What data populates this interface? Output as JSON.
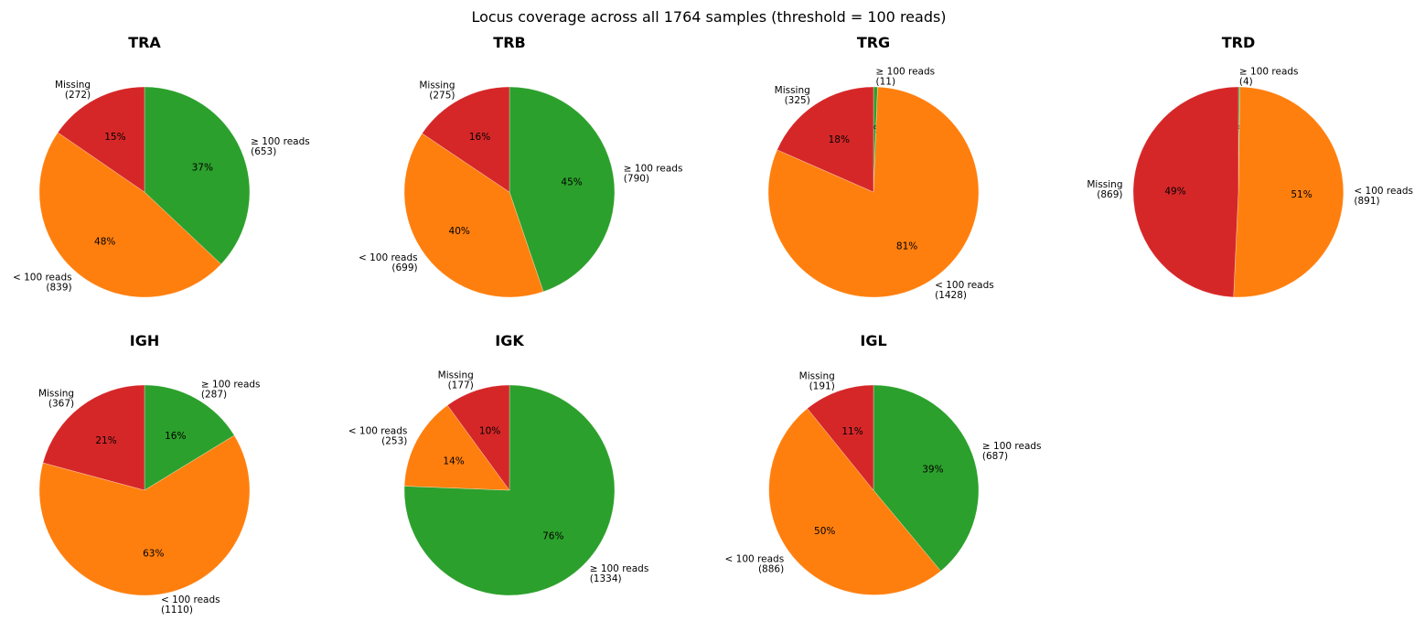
{
  "suptitle": "Locus coverage across all 1764 samples (threshold = 100 reads)",
  "colors": {
    "ge": "#2ca02c",
    "lt": "#ff7f0e",
    "missing": "#d62728"
  },
  "chart_data": [
    {
      "type": "pie",
      "title": "TRA",
      "slices": [
        {
          "key": "ge",
          "label": "≥ 100 reads",
          "count": "(653)",
          "value": 653,
          "pct": "37%"
        },
        {
          "key": "lt",
          "label": "< 100 reads",
          "count": "(839)",
          "value": 839,
          "pct": "48%"
        },
        {
          "key": "missing",
          "label": "Missing",
          "count": "(272)",
          "value": 272,
          "pct": "15%"
        }
      ]
    },
    {
      "type": "pie",
      "title": "TRB",
      "slices": [
        {
          "key": "ge",
          "label": "≥ 100 reads",
          "count": "(790)",
          "value": 790,
          "pct": "45%"
        },
        {
          "key": "lt",
          "label": "< 100 reads",
          "count": "(699)",
          "value": 699,
          "pct": "40%"
        },
        {
          "key": "missing",
          "label": "Missing",
          "count": "(275)",
          "value": 275,
          "pct": "16%"
        }
      ]
    },
    {
      "type": "pie",
      "title": "TRG",
      "slices": [
        {
          "key": "ge",
          "label": "≥ 100 reads",
          "count": "(11)",
          "value": 11,
          "pct": "1%"
        },
        {
          "key": "lt",
          "label": "< 100 reads",
          "count": "(1428)",
          "value": 1428,
          "pct": "81%"
        },
        {
          "key": "missing",
          "label": "Missing",
          "count": "(325)",
          "value": 325,
          "pct": "18%"
        }
      ]
    },
    {
      "type": "pie",
      "title": "TRD",
      "slices": [
        {
          "key": "ge",
          "label": "≥ 100 reads",
          "count": "(4)",
          "value": 4,
          "pct": "0%"
        },
        {
          "key": "lt",
          "label": "< 100 reads",
          "count": "(891)",
          "value": 891,
          "pct": "51%"
        },
        {
          "key": "missing",
          "label": "Missing",
          "count": "(869)",
          "value": 869,
          "pct": "49%"
        }
      ]
    },
    {
      "type": "pie",
      "title": "IGH",
      "slices": [
        {
          "key": "ge",
          "label": "≥ 100 reads",
          "count": "(287)",
          "value": 287,
          "pct": "16%"
        },
        {
          "key": "lt",
          "label": "< 100 reads",
          "count": "(1110)",
          "value": 1110,
          "pct": "63%"
        },
        {
          "key": "missing",
          "label": "Missing",
          "count": "(367)",
          "value": 367,
          "pct": "21%"
        }
      ]
    },
    {
      "type": "pie",
      "title": "IGK",
      "slices": [
        {
          "key": "ge",
          "label": "≥ 100 reads",
          "count": "(1334)",
          "value": 1334,
          "pct": "76%"
        },
        {
          "key": "lt",
          "label": "< 100 reads",
          "count": "(253)",
          "value": 253,
          "pct": "14%"
        },
        {
          "key": "missing",
          "label": "Missing",
          "count": "(177)",
          "value": 177,
          "pct": "10%"
        }
      ]
    },
    {
      "type": "pie",
      "title": "IGL",
      "slices": [
        {
          "key": "ge",
          "label": "≥ 100 reads",
          "count": "(687)",
          "value": 687,
          "pct": "39%"
        },
        {
          "key": "lt",
          "label": "< 100 reads",
          "count": "(886)",
          "value": 886,
          "pct": "50%"
        },
        {
          "key": "missing",
          "label": "Missing",
          "count": "(191)",
          "value": 191,
          "pct": "11%"
        }
      ]
    }
  ]
}
